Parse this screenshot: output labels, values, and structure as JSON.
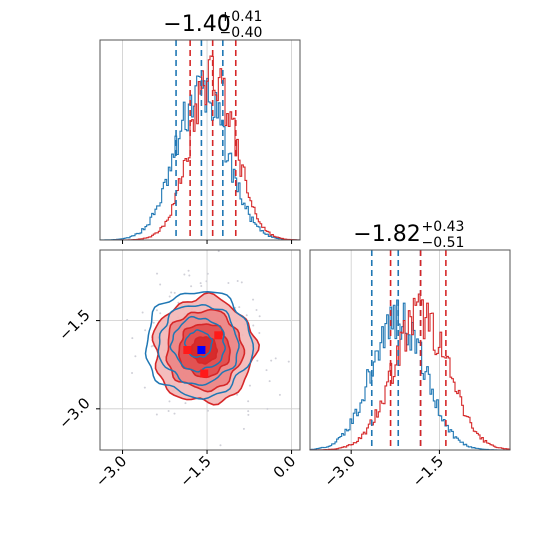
{
  "colors": {
    "blue": "#1f77b4",
    "red": "#d62728",
    "grid": "#cccccc",
    "axis": "#555555",
    "scatter": "#d0d0d8"
  },
  "titles": {
    "p1": {
      "main": "−1.40",
      "sup": "+0.41",
      "sub": "−0.40"
    },
    "p2": {
      "main": "−1.82",
      "sup": "+0.43",
      "sub": "−0.51"
    }
  },
  "chart_data": [
    {
      "type": "histogram",
      "panel": "marginal-param-1",
      "xlim": [
        -3.4,
        0.15
      ],
      "grid": true,
      "bins": 120,
      "series": [
        {
          "color": "blue",
          "center": -1.6,
          "spread": 0.45,
          "quantiles": [
            -2.05,
            -1.6,
            -1.22
          ]
        },
        {
          "color": "red",
          "center": -1.4,
          "spread": 0.4,
          "quantiles": [
            -1.8,
            -1.4,
            -0.99
          ]
        }
      ]
    },
    {
      "type": "histogram",
      "panel": "marginal-param-2",
      "xlim": [
        -3.7,
        -0.3
      ],
      "xticks": [
        "−3.0",
        "−1.5"
      ],
      "grid": true,
      "bins": 120,
      "series": [
        {
          "color": "blue",
          "center": -2.2,
          "spread": 0.45,
          "quantiles": [
            -2.65,
            -2.2,
            -1.82
          ]
        },
        {
          "color": "red",
          "center": -1.82,
          "spread": 0.47,
          "quantiles": [
            -2.33,
            -1.82,
            -1.39
          ]
        }
      ]
    },
    {
      "type": "contour",
      "panel": "joint",
      "xlim": [
        -3.4,
        0.15
      ],
      "ylim": [
        -3.7,
        -0.3
      ],
      "xticks": [
        "−3.0",
        "−1.5",
        "0.0"
      ],
      "yticks": [
        "−1.5",
        "−3.0"
      ],
      "grid": true,
      "levels": [
        0.5,
        1.0,
        1.5,
        2.0
      ],
      "series": [
        {
          "color": "red",
          "filled": true,
          "center": [
            -1.55,
            -2.0
          ],
          "spread": [
            0.45,
            0.45
          ]
        },
        {
          "color": "blue",
          "filled": false,
          "center": [
            -1.65,
            -1.9
          ],
          "spread": [
            0.47,
            0.45
          ]
        }
      ],
      "markers": [
        {
          "color": "red",
          "x": -1.85,
          "y": -2.0
        },
        {
          "color": "red",
          "x": -1.3,
          "y": -1.75
        },
        {
          "color": "red",
          "x": -1.55,
          "y": -2.4
        },
        {
          "color": "blue",
          "x": -1.6,
          "y": -2.0
        }
      ]
    }
  ]
}
